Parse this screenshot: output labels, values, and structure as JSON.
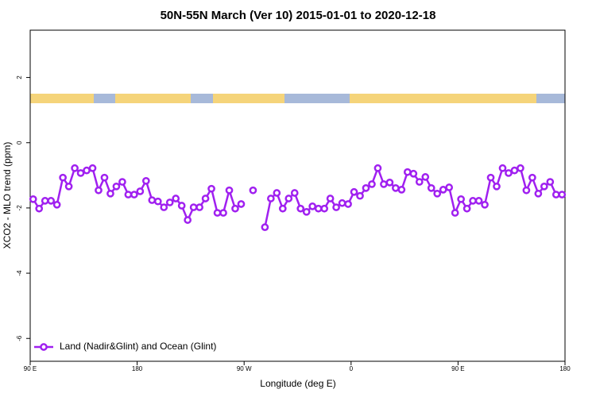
{
  "chart_data": {
    "type": "line",
    "title": "50N-55N March (Ver 10)   2015-01-01 to 2020-12-18",
    "xlabel": "Longitude (deg E)",
    "ylabel": "XCO2 - MLO trend (ppm)",
    "xlim": [
      90,
      540
    ],
    "ylim": [
      -6.7,
      3.45
    ],
    "xticks": [
      {
        "value": 90,
        "label": "90 E"
      },
      180,
      {
        "value": 270,
        "label": "90 W"
      },
      {
        "value": 360,
        "label": "0"
      },
      {
        "value": 450,
        "label": "90 E"
      },
      {
        "value": 540,
        "label": "180"
      }
    ],
    "yticks": [
      -6,
      -4,
      -2,
      0,
      2
    ],
    "legend": "bottom-left",
    "x": [
      92.5,
      97.5,
      102.5,
      107.5,
      112.5,
      117.5,
      122.5,
      127.5,
      132.5,
      137.5,
      142.5,
      147.5,
      152.5,
      157.5,
      162.5,
      167.5,
      172.5,
      177.5,
      182.5,
      187.5,
      192.5,
      197.5,
      202.5,
      207.5,
      212.5,
      217.5,
      222.5,
      227.5,
      232.5,
      237.5,
      242.5,
      247.5,
      252.5,
      257.5,
      262.5,
      267.5,
      272.5,
      277.5,
      282.5,
      287.5,
      292.5,
      297.5,
      302.5,
      307.5,
      312.5,
      317.5,
      322.5,
      327.5,
      332.5,
      337.5,
      342.5,
      347.5,
      352.5,
      357.5,
      362.5,
      367.5,
      372.5,
      377.5,
      382.5,
      387.5,
      392.5,
      397.5,
      402.5,
      407.5,
      412.5,
      417.5,
      422.5,
      427.5,
      432.5,
      437.5,
      442.5,
      447.5,
      452.5,
      457.5,
      462.5,
      467.5,
      472.5,
      477.5,
      482.5,
      487.5,
      492.5,
      497.5,
      502.5,
      507.5,
      512.5,
      517.5,
      522.5,
      527.5,
      532.5,
      537.5
    ],
    "series": [
      {
        "name": "Land (Nadir&Glint) and Ocean (Glint)",
        "color": "#a020f0",
        "values": [
          -1.73,
          -2.02,
          -1.78,
          -1.78,
          -1.9,
          -1.07,
          -1.34,
          -0.78,
          -0.93,
          -0.85,
          -0.78,
          -1.46,
          -1.07,
          -1.56,
          -1.34,
          -1.2,
          -1.59,
          -1.59,
          -1.49,
          -1.17,
          -1.76,
          -1.8,
          -1.98,
          -1.83,
          -1.71,
          -1.93,
          -2.37,
          -1.98,
          -1.98,
          -1.71,
          -1.41,
          -2.15,
          -2.15,
          -1.46,
          -2.02,
          -1.88,
          null,
          -1.46,
          null,
          -2.59,
          -1.71,
          -1.54,
          -2.02,
          -1.71,
          -1.54,
          -2.02,
          -2.12,
          -1.95,
          -2.02,
          -2.02,
          -1.71,
          -1.98,
          -1.85,
          -1.88,
          -1.51,
          -1.63,
          -1.39,
          -1.27,
          -0.78,
          -1.27,
          -1.22,
          -1.39,
          -1.44,
          -0.9,
          -0.95,
          -1.2,
          -1.05,
          -1.39,
          -1.56,
          -1.44,
          -1.37,
          -2.15,
          -1.73,
          -2.02,
          -1.78,
          -1.78,
          -1.9,
          -1.07,
          -1.34,
          -0.78,
          -0.93,
          -0.85,
          -0.78,
          -1.46,
          -1.07,
          -1.56,
          -1.34,
          -1.2,
          -1.59,
          -1.59
        ]
      }
    ]
  }
}
